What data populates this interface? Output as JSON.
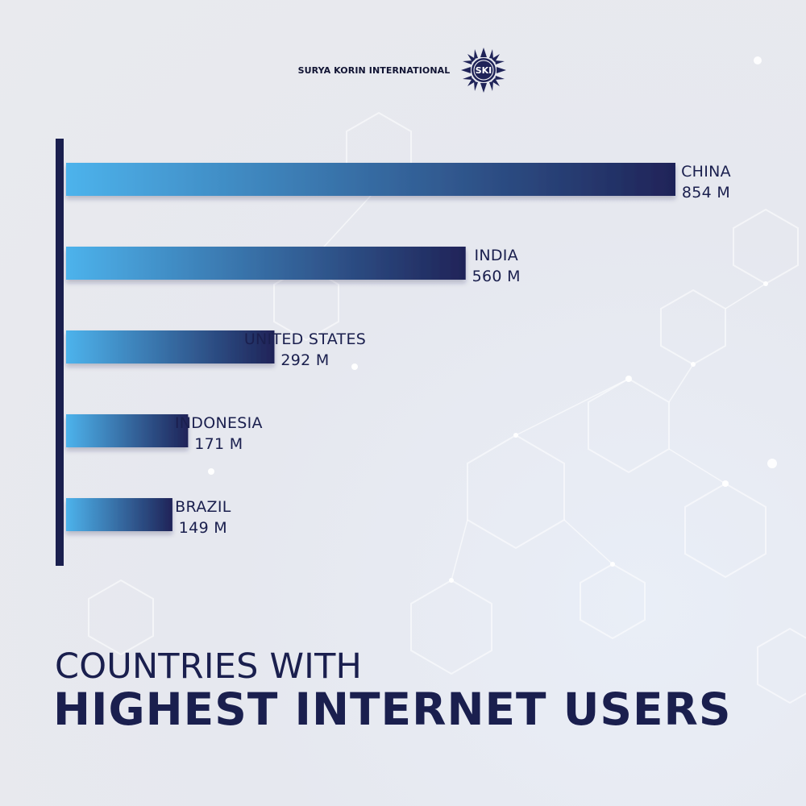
{
  "brand": {
    "name": "SURYA KORIN INTERNATIONAL",
    "logo_text": "SKI"
  },
  "colors": {
    "navy": "#1a1f4e",
    "bar_start": "#4db3ec",
    "bar_end": "#1f2358"
  },
  "title": {
    "line1": "COUNTRIES WITH",
    "line2": "HIGHEST INTERNET USERS"
  },
  "chart_data": {
    "type": "bar",
    "orientation": "horizontal",
    "categories": [
      "CHINA",
      "INDIA",
      "UNITED STATES",
      "INDONESIA",
      "BRAZIL"
    ],
    "values": [
      854,
      560,
      292,
      171,
      149
    ],
    "value_labels": [
      "854 M",
      "560 M",
      "292 M",
      "171 M",
      "149 M"
    ],
    "unit": "M",
    "title": "COUNTRIES WITH HIGHEST INTERNET USERS",
    "xlabel": "",
    "ylabel": "",
    "grid": false,
    "legend": "none"
  }
}
